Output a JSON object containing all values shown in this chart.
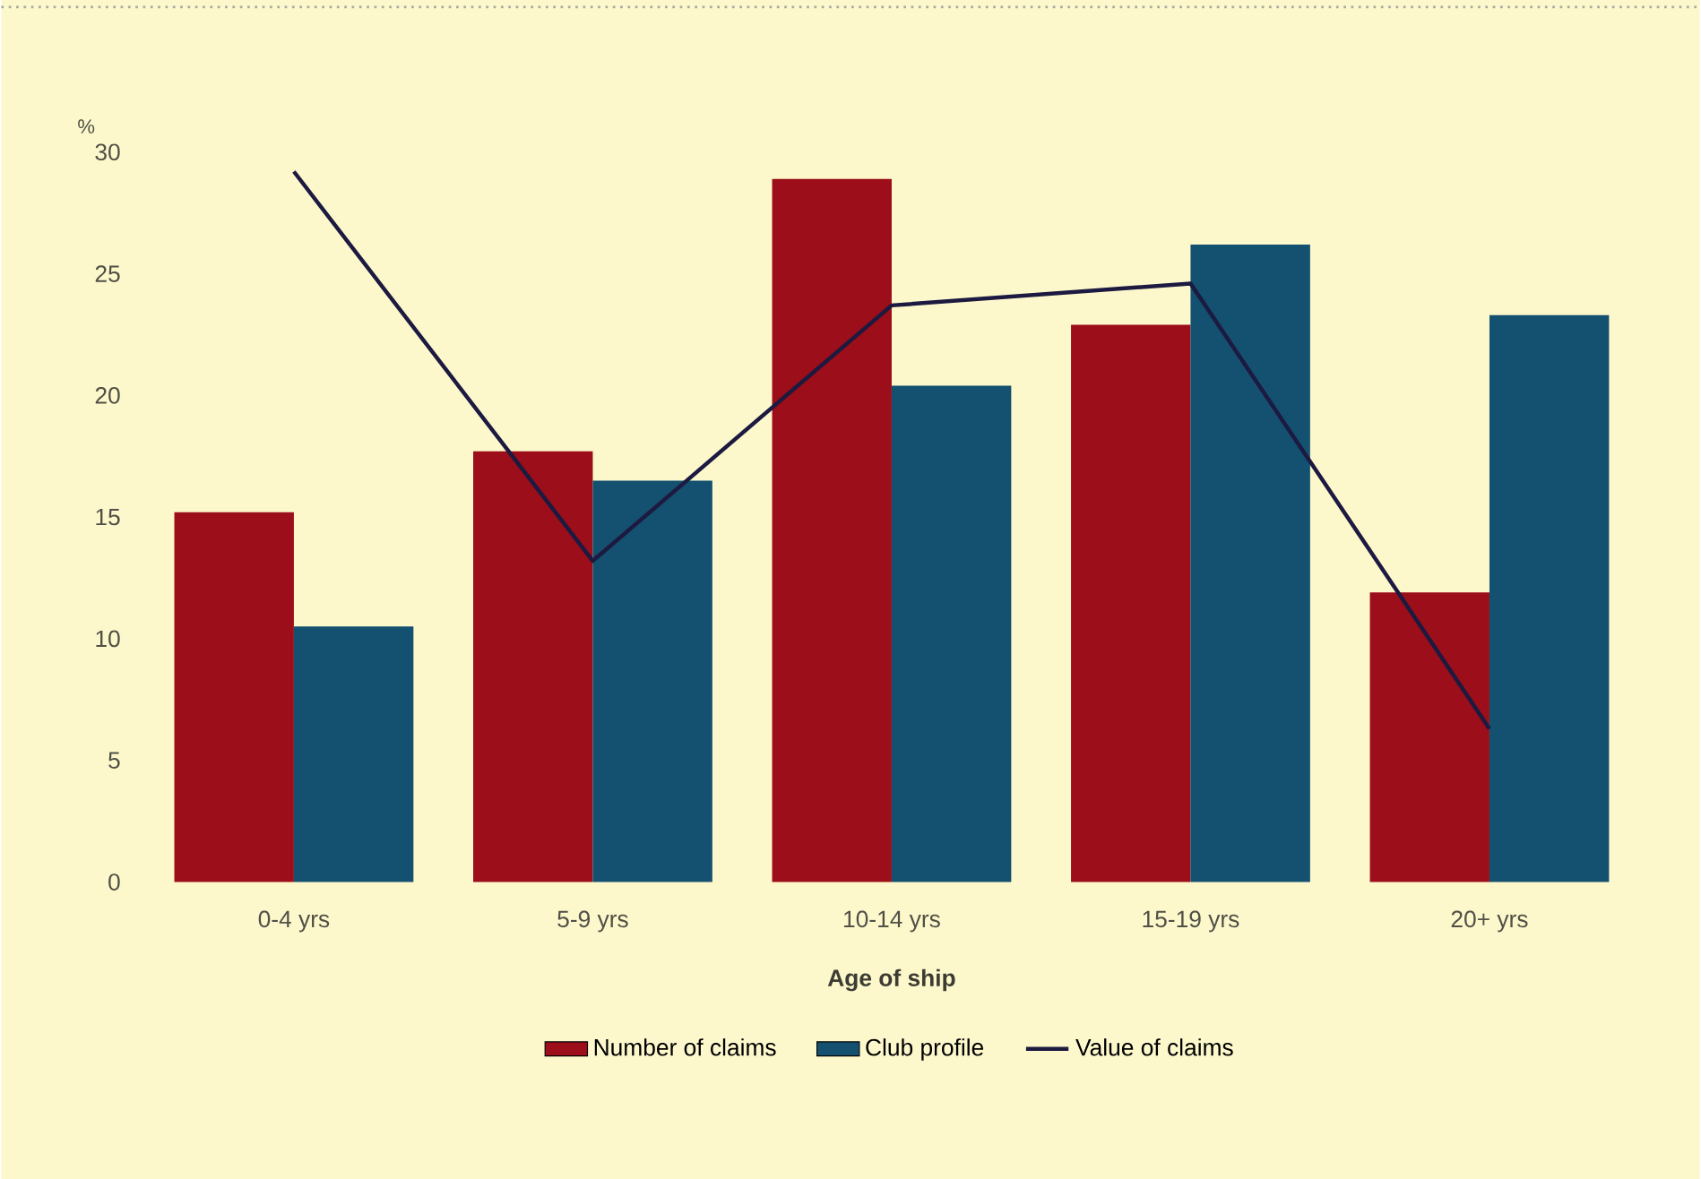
{
  "chart_data": {
    "type": "bar",
    "xlabel": "Age of ship",
    "ylabel": "%",
    "categories": [
      "0-4 yrs",
      "5-9 yrs",
      "10-14 yrs",
      "15-19 yrs",
      "20+ yrs"
    ],
    "series": [
      {
        "name": "Number of claims",
        "color": "#9b0e1a",
        "values": [
          15.2,
          17.7,
          28.9,
          22.9,
          11.9
        ]
      },
      {
        "name": "Club profile",
        "color": "#145070",
        "values": [
          10.5,
          16.5,
          20.4,
          26.2,
          23.3
        ]
      },
      {
        "name": "Value of claims",
        "type": "line",
        "color": "#1c1a40",
        "values": [
          29.2,
          13.2,
          23.7,
          24.6,
          6.3
        ]
      }
    ],
    "ylim": [
      0,
      30
    ],
    "yticks": [
      0,
      5,
      10,
      15,
      20,
      25,
      30
    ],
    "legend": "bottom"
  }
}
